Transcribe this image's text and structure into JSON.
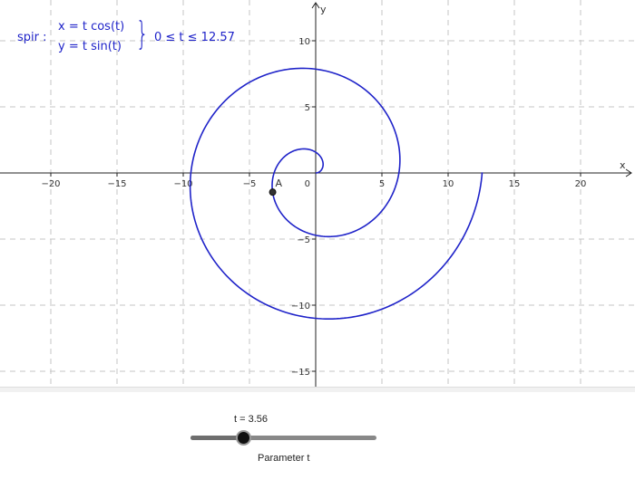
{
  "curve_color": "#1f23c9",
  "chart_data": {
    "type": "line",
    "curve": "parametric",
    "name": "spir",
    "x_equation": "x = t  cos(t)",
    "y_equation": "y = t  sin(t)",
    "t_range": [
      0,
      12.57
    ],
    "domain_label": "0 ≤ t ≤ 12.57",
    "xlabel": "x",
    "ylabel": "y",
    "xlim": [
      -24,
      24
    ],
    "ylim": [
      -16.5,
      13
    ],
    "x_ticks": [
      -20,
      -15,
      -10,
      -5,
      5,
      10,
      15,
      20
    ],
    "x_tick_labels": [
      "−20",
      "−15",
      "−10",
      "−5",
      "5",
      "10",
      "15",
      "20"
    ],
    "y_ticks": [
      -15,
      -10,
      -5,
      5,
      10
    ],
    "y_tick_labels": [
      "−15",
      "−10",
      "−5",
      "5",
      "10"
    ],
    "origin_label": "0",
    "grid": true,
    "point": {
      "label": "A",
      "t": 3.56,
      "x": -3.25,
      "y": -1.45
    }
  },
  "slider": {
    "value_text": "t = 3.56",
    "value": 3.56,
    "min": 0,
    "max": 12.57,
    "caption": "Parameter t"
  }
}
